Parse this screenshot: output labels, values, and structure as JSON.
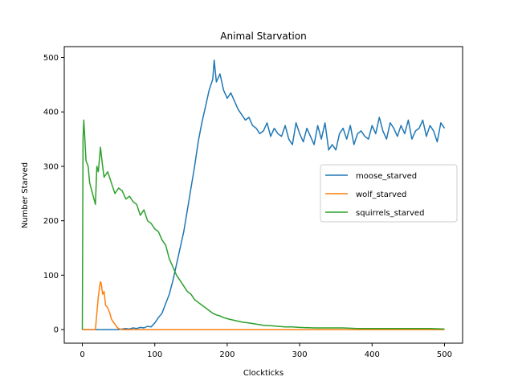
{
  "chart_data": {
    "type": "line",
    "title": "Animal Starvation",
    "xlabel": "Clockticks",
    "ylabel": "Number Starved",
    "xlim": [
      -25,
      525
    ],
    "ylim": [
      -25,
      520
    ],
    "xticks": [
      0,
      100,
      200,
      300,
      400,
      500
    ],
    "yticks": [
      0,
      100,
      200,
      300,
      400,
      500
    ],
    "grid": false,
    "legend_position": "center-right",
    "series": [
      {
        "name": "moose_starved",
        "color": "#1f77b4",
        "x": [
          0,
          5,
          10,
          15,
          20,
          25,
          30,
          35,
          40,
          45,
          50,
          55,
          60,
          65,
          70,
          75,
          80,
          85,
          90,
          95,
          100,
          105,
          110,
          115,
          120,
          125,
          130,
          135,
          140,
          145,
          150,
          155,
          160,
          165,
          170,
          175,
          180,
          182,
          185,
          190,
          195,
          200,
          205,
          210,
          215,
          220,
          225,
          230,
          235,
          240,
          245,
          250,
          255,
          260,
          265,
          270,
          275,
          280,
          285,
          290,
          295,
          300,
          305,
          310,
          315,
          320,
          325,
          330,
          335,
          340,
          345,
          350,
          355,
          360,
          365,
          370,
          375,
          380,
          385,
          390,
          395,
          400,
          405,
          410,
          415,
          420,
          425,
          430,
          435,
          440,
          445,
          450,
          455,
          460,
          465,
          470,
          475,
          480,
          485,
          490,
          495,
          500
        ],
        "y": [
          0,
          0,
          0,
          0,
          0,
          0,
          0,
          0,
          0,
          0,
          0,
          1,
          2,
          1,
          3,
          2,
          4,
          3,
          6,
          5,
          12,
          22,
          30,
          48,
          65,
          90,
          120,
          150,
          180,
          220,
          260,
          300,
          345,
          380,
          410,
          440,
          460,
          495,
          455,
          470,
          440,
          425,
          435,
          420,
          405,
          395,
          385,
          390,
          375,
          370,
          360,
          365,
          380,
          355,
          370,
          360,
          355,
          375,
          350,
          340,
          380,
          360,
          345,
          370,
          355,
          340,
          375,
          350,
          380,
          330,
          340,
          330,
          360,
          370,
          350,
          375,
          340,
          360,
          365,
          355,
          350,
          375,
          360,
          390,
          365,
          350,
          380,
          370,
          355,
          375,
          360,
          385,
          350,
          365,
          370,
          385,
          355,
          375,
          365,
          345,
          380,
          370
        ]
      },
      {
        "name": "wolf_starved",
        "color": "#ff7f0e",
        "x": [
          0,
          5,
          10,
          15,
          18,
          20,
          22,
          24,
          25,
          26,
          28,
          30,
          32,
          35,
          38,
          40,
          42,
          45,
          48,
          50,
          55,
          60,
          100,
          200,
          300,
          400,
          500
        ],
        "y": [
          0,
          0,
          0,
          0,
          0,
          30,
          60,
          80,
          88,
          85,
          65,
          70,
          45,
          40,
          30,
          20,
          15,
          10,
          4,
          2,
          0,
          0,
          0,
          0,
          0,
          0,
          0
        ]
      },
      {
        "name": "squirrels_starved",
        "color": "#2ca02c",
        "x": [
          0,
          1,
          2,
          3,
          5,
          8,
          10,
          12,
          15,
          18,
          20,
          22,
          25,
          28,
          30,
          35,
          40,
          45,
          50,
          55,
          60,
          65,
          70,
          75,
          80,
          85,
          90,
          95,
          100,
          105,
          110,
          115,
          120,
          125,
          130,
          135,
          140,
          145,
          150,
          155,
          160,
          165,
          170,
          175,
          180,
          185,
          190,
          195,
          200,
          210,
          220,
          230,
          240,
          250,
          260,
          270,
          280,
          290,
          300,
          320,
          340,
          360,
          380,
          400,
          420,
          440,
          460,
          480,
          500
        ],
        "y": [
          0,
          350,
          385,
          360,
          310,
          300,
          270,
          260,
          245,
          230,
          300,
          290,
          335,
          300,
          280,
          290,
          270,
          250,
          260,
          255,
          240,
          245,
          235,
          230,
          210,
          220,
          200,
          195,
          185,
          180,
          165,
          155,
          130,
          115,
          100,
          90,
          80,
          70,
          65,
          55,
          50,
          45,
          40,
          35,
          30,
          27,
          25,
          22,
          20,
          17,
          14,
          12,
          10,
          8,
          7,
          6,
          5,
          5,
          4,
          3,
          3,
          3,
          2,
          2,
          2,
          2,
          2,
          2,
          1
        ]
      }
    ]
  }
}
